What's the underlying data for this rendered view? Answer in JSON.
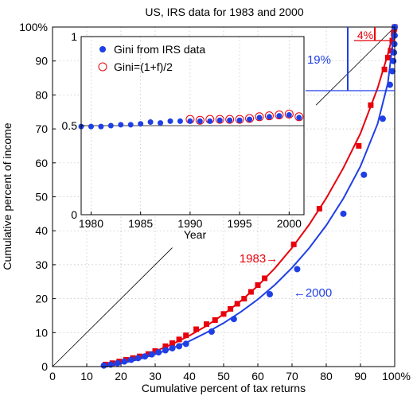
{
  "chart_data": [
    {
      "type": "scatter",
      "title": "US, IRS data for 1983 and 2000",
      "xlabel": "Cumulative percent of tax returns",
      "ylabel": "Cumulative percent of income",
      "xlim": [
        0,
        100
      ],
      "ylim": [
        0,
        100
      ],
      "x_ticks": [
        "0",
        "10",
        "20",
        "30",
        "40",
        "50",
        "60",
        "70",
        "80",
        "90",
        "100%"
      ],
      "y_ticks": [
        "0",
        "10",
        "20",
        "30",
        "40",
        "50",
        "60",
        "70",
        "80",
        "90",
        "100%"
      ],
      "grid": true,
      "colors": {
        "y1983": "#e8000b",
        "y2000": "#1f3fe6",
        "equality": "#000000"
      },
      "series": [
        {
          "name": "1983",
          "marker": "square",
          "label": "1983→",
          "points": [
            [
              15.5,
              0.6
            ],
            [
              17.5,
              1.0
            ],
            [
              19.5,
              1.5
            ],
            [
              21.5,
              2.0
            ],
            [
              23.5,
              2.5
            ],
            [
              25.5,
              3.0
            ],
            [
              28,
              3.7
            ],
            [
              30,
              4.6
            ],
            [
              33,
              6.0
            ],
            [
              35,
              6.9
            ],
            [
              37,
              8.0
            ],
            [
              39,
              9.2
            ],
            [
              42,
              11.0
            ],
            [
              45,
              12.5
            ],
            [
              47.5,
              13.7
            ],
            [
              50,
              15.5
            ],
            [
              52,
              17.0
            ],
            [
              54,
              18.5
            ],
            [
              56,
              20.0
            ],
            [
              58,
              22.0
            ],
            [
              60,
              24.0
            ],
            [
              62,
              26.0
            ],
            [
              70.5,
              36.0
            ],
            [
              78,
              46.5
            ],
            [
              89.5,
              65.0
            ],
            [
              93,
              77.0
            ],
            [
              97,
              87.5
            ],
            [
              98,
              91.0
            ],
            [
              98.8,
              93.0
            ],
            [
              99.3,
              96.0
            ],
            [
              99.7,
              98.0
            ],
            [
              99.9,
              99.5
            ],
            [
              100,
              100
            ]
          ],
          "curve": [
            [
              15,
              0
            ],
            [
              20,
              1.2
            ],
            [
              25,
              2.7
            ],
            [
              30,
              4.5
            ],
            [
              35,
              6.6
            ],
            [
              40,
              9.1
            ],
            [
              45,
              12.0
            ],
            [
              50,
              15.4
            ],
            [
              55,
              19.3
            ],
            [
              60,
              23.8
            ],
            [
              65,
              29.0
            ],
            [
              70,
              35.0
            ],
            [
              75,
              41.8
            ],
            [
              80,
              49.6
            ],
            [
              85,
              58.5
            ],
            [
              90,
              68.7
            ],
            [
              95,
              82.0
            ],
            [
              98,
              92.0
            ],
            [
              100,
              100
            ]
          ]
        },
        {
          "name": "2000",
          "marker": "circle",
          "label": "←2000",
          "points": [
            [
              15,
              0.3
            ],
            [
              17,
              0.6
            ],
            [
              19,
              1.0
            ],
            [
              21,
              1.5
            ],
            [
              23,
              2.0
            ],
            [
              25,
              2.5
            ],
            [
              27,
              3.0
            ],
            [
              29,
              3.6
            ],
            [
              31,
              4.2
            ],
            [
              33,
              4.8
            ],
            [
              35,
              5.4
            ],
            [
              37,
              6.0
            ],
            [
              39,
              6.7
            ],
            [
              46.5,
              10.3
            ],
            [
              53,
              14.0
            ],
            [
              63.5,
              21.3
            ],
            [
              71.5,
              28.7
            ],
            [
              85,
              45.0
            ],
            [
              91,
              56.5
            ],
            [
              96.5,
              73.0
            ],
            [
              98.6,
              83.0
            ],
            [
              99.3,
              87.0
            ],
            [
              99.6,
              90.0
            ],
            [
              99.8,
              92.5
            ],
            [
              99.9,
              95.0
            ],
            [
              100,
              97.5
            ],
            [
              100,
              100
            ]
          ],
          "curve": [
            [
              15,
              0
            ],
            [
              20,
              0.9
            ],
            [
              25,
              2.1
            ],
            [
              30,
              3.6
            ],
            [
              35,
              5.4
            ],
            [
              40,
              7.5
            ],
            [
              45,
              10.0
            ],
            [
              50,
              12.8
            ],
            [
              55,
              16.1
            ],
            [
              60,
              19.8
            ],
            [
              65,
              24.1
            ],
            [
              70,
              29.1
            ],
            [
              75,
              34.9
            ],
            [
              80,
              41.6
            ],
            [
              85,
              49.5
            ],
            [
              90,
              59.0
            ],
            [
              95,
              71.5
            ],
            [
              98,
              83.5
            ],
            [
              100,
              100
            ]
          ]
        }
      ],
      "annotations": [
        {
          "text": "19%",
          "color": "#1f3fe6"
        },
        {
          "text": "4%",
          "color": "#e8000b"
        }
      ]
    },
    {
      "type": "scatter",
      "xlabel": "Year",
      "ylabel": "",
      "xlim": [
        1979,
        2001.5
      ],
      "ylim": [
        0,
        1
      ],
      "x_ticks": [
        "1980",
        "1985",
        "1990",
        "1995",
        "2000"
      ],
      "y_ticks": [
        "0",
        "0.5",
        "1"
      ],
      "reference_line": 0.5,
      "legend": {
        "position": "top-left"
      },
      "series": [
        {
          "name": "Gini from IRS data",
          "marker": "filled-circle",
          "points": [
            [
              1979,
              0.495
            ],
            [
              1980,
              0.495
            ],
            [
              1981,
              0.495
            ],
            [
              1982,
              0.5
            ],
            [
              1983,
              0.505
            ],
            [
              1984,
              0.505
            ],
            [
              1985,
              0.51
            ],
            [
              1986,
              0.52
            ],
            [
              1987,
              0.515
            ],
            [
              1988,
              0.525
            ],
            [
              1989,
              0.525
            ],
            [
              1990,
              0.525
            ],
            [
              1991,
              0.525
            ],
            [
              1992,
              0.525
            ],
            [
              1993,
              0.53
            ],
            [
              1994,
              0.53
            ],
            [
              1995,
              0.53
            ],
            [
              1996,
              0.535
            ],
            [
              1997,
              0.545
            ],
            [
              1998,
              0.55
            ],
            [
              1999,
              0.555
            ],
            [
              2000,
              0.56
            ],
            [
              2001,
              0.545
            ]
          ]
        },
        {
          "name": "Gini=(1+f)/2",
          "marker": "open-circle",
          "points": [
            [
              1990,
              0.535
            ],
            [
              1991,
              0.53
            ],
            [
              1992,
              0.535
            ],
            [
              1993,
              0.535
            ],
            [
              1994,
              0.535
            ],
            [
              1995,
              0.535
            ],
            [
              1996,
              0.54
            ],
            [
              1997,
              0.55
            ],
            [
              1998,
              0.555
            ],
            [
              1999,
              0.56
            ],
            [
              2000,
              0.565
            ],
            [
              2001,
              0.55
            ]
          ]
        }
      ]
    }
  ]
}
